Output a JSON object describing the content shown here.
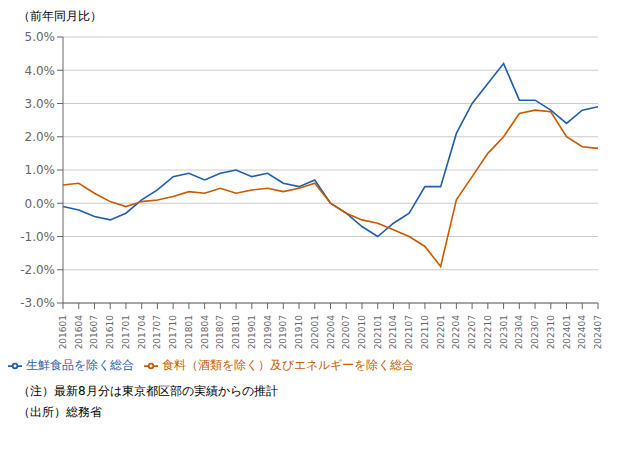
{
  "chart_data": {
    "type": "line",
    "title": "（前年同月比）",
    "annotations": [
      "（注）最新8月分は東京都区部の実績からの推計",
      "（出所）総務省"
    ],
    "categories": [
      "201601",
      "201604",
      "201607",
      "201610",
      "201701",
      "201704",
      "201707",
      "201710",
      "201801",
      "201804",
      "201807",
      "201810",
      "201901",
      "201904",
      "201907",
      "201910",
      "202001",
      "202004",
      "202007",
      "202010",
      "202101",
      "202104",
      "202107",
      "202110",
      "202201",
      "202204",
      "202207",
      "202210",
      "202301",
      "202304",
      "202307",
      "202310",
      "202401",
      "202404",
      "202407"
    ],
    "series": [
      {
        "name": "生鮮食品を除く総合",
        "color": "#1f5ead",
        "values": [
          -0.1,
          -0.2,
          -0.4,
          -0.5,
          -0.3,
          0.1,
          0.4,
          0.8,
          0.9,
          0.7,
          0.9,
          1.0,
          0.8,
          0.9,
          0.6,
          0.5,
          0.7,
          0.0,
          -0.3,
          -0.7,
          -1.0,
          -0.6,
          -0.3,
          0.5,
          0.5,
          2.1,
          3.0,
          3.6,
          4.2,
          3.1,
          3.1,
          2.8,
          2.4,
          2.8,
          2.9
        ]
      },
      {
        "name": "食料（酒類を除く）及びエネルギーを除く総合",
        "color": "#c85a00",
        "values": [
          0.55,
          0.6,
          0.3,
          0.05,
          -0.1,
          0.05,
          0.1,
          0.2,
          0.35,
          0.3,
          0.45,
          0.3,
          0.4,
          0.45,
          0.35,
          0.45,
          0.6,
          0.0,
          -0.3,
          -0.5,
          -0.6,
          -0.8,
          -1.0,
          -1.3,
          -1.9,
          0.1,
          0.8,
          1.5,
          2.0,
          2.7,
          2.8,
          2.75,
          2.0,
          1.7,
          1.65
        ]
      }
    ],
    "ylim": [
      -3.0,
      5.0
    ],
    "yticks": [
      {
        "value": -3.0,
        "label": "-3.0%"
      },
      {
        "value": -2.0,
        "label": "-2.0%"
      },
      {
        "value": -1.0,
        "label": "-1.0%"
      },
      {
        "value": 0.0,
        "label": "0.0%"
      },
      {
        "value": 1.0,
        "label": "1.0%"
      },
      {
        "value": 2.0,
        "label": "2.0%"
      },
      {
        "value": 3.0,
        "label": "3.0%"
      },
      {
        "value": 4.0,
        "label": "4.0%"
      },
      {
        "value": 5.0,
        "label": "5.0%"
      }
    ],
    "grid": true,
    "legend": "bottom"
  }
}
